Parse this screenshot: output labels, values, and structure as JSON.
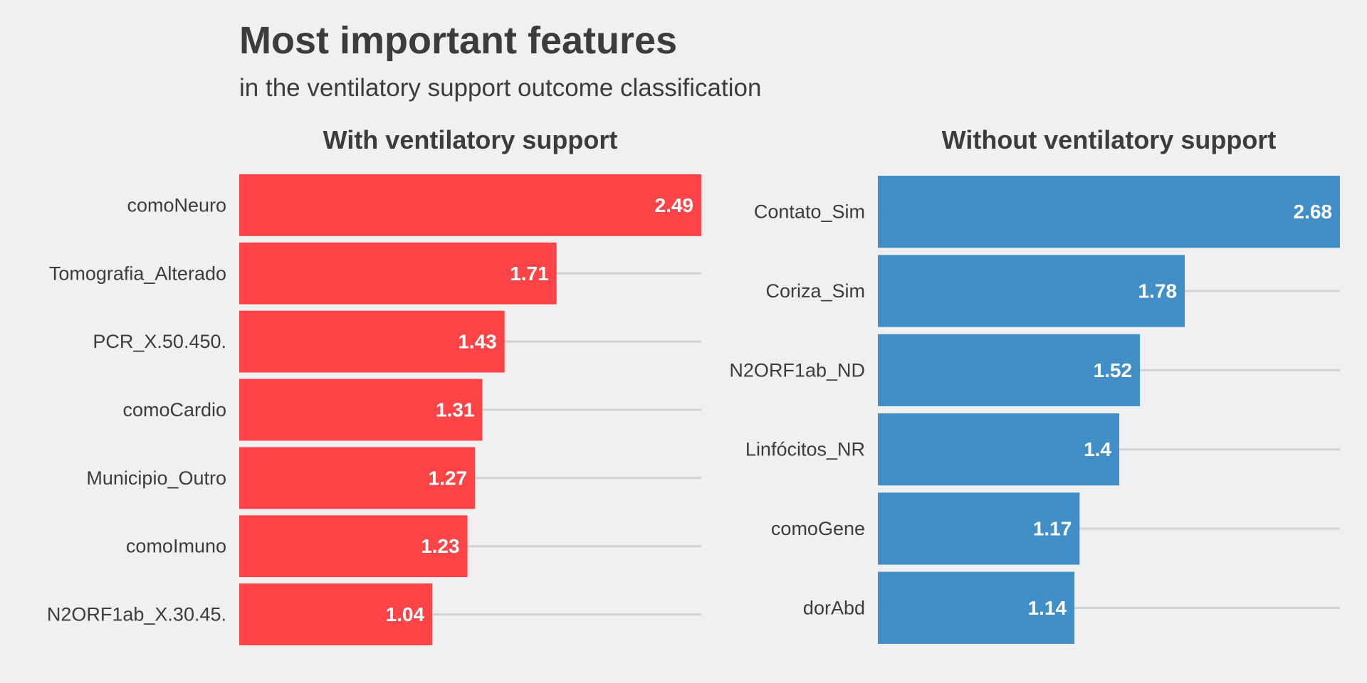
{
  "title": "Most important features",
  "subtitle": "in the ventilatory support outcome classification",
  "colors": {
    "background": "#f0f0f0",
    "grid": "#d2d2d2",
    "left_bar": "#fe3e40",
    "right_bar": "#3c8bc5",
    "value_text": "#ffffff"
  },
  "chart_data": [
    {
      "type": "bar",
      "orientation": "horizontal",
      "title": "With ventilatory support",
      "color": "#fe3e40",
      "categories": [
        "comoNeuro",
        "Tomografia_Alterado",
        "PCR_X.50.450.",
        "comoCardio",
        "Municipio_Outro",
        "comoImuno",
        "N2ORF1ab_X.30.45."
      ],
      "values": [
        2.49,
        1.71,
        1.43,
        1.31,
        1.27,
        1.23,
        1.04
      ],
      "value_labels": [
        "2.49",
        "1.71",
        "1.43",
        "1.31",
        "1.27",
        "1.23",
        "1.04"
      ],
      "xlim": [
        0,
        2.49
      ],
      "grid": true
    },
    {
      "type": "bar",
      "orientation": "horizontal",
      "title": "Without ventilatory support",
      "color": "#3c8bc5",
      "categories": [
        "Contato_Sim",
        "Coriza_Sim",
        "N2ORF1ab_ND",
        "Linfócitos_NR",
        "comoGene",
        "dorAbd"
      ],
      "values": [
        2.68,
        1.78,
        1.52,
        1.4,
        1.17,
        1.14
      ],
      "value_labels": [
        "2.68",
        "1.78",
        "1.52",
        "1.4",
        "1.17",
        "1.14"
      ],
      "xlim": [
        0,
        2.68
      ],
      "grid": true
    }
  ]
}
